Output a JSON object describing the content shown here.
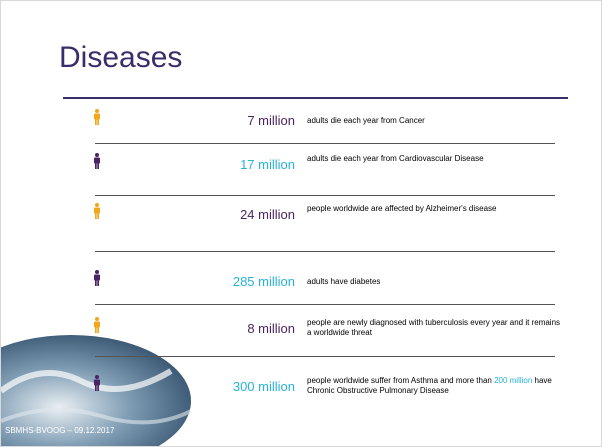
{
  "title": "Diseases",
  "rows": [
    {
      "amount": "7 million",
      "description": "adults die each year from Cancer"
    },
    {
      "amount": "17 million",
      "description": "adults die each year from Cardiovascular Disease"
    },
    {
      "amount": "24 million",
      "description": "people worldwide are affected by Alzheimer's disease"
    },
    {
      "amount": "285 million",
      "description": "adults have diabetes"
    },
    {
      "amount": "8 million",
      "description": "people are newly diagnosed with tuberculosis every year and it remains a worldwide threat"
    },
    {
      "amount": "300 million",
      "description": [
        "people worldwide suffer from Asthma and more than ",
        "200 million",
        " have Chronic Obstructive Pulmonary Disease"
      ]
    }
  ],
  "footer": "SBMHS-BVOOG – 09.12.2017"
}
